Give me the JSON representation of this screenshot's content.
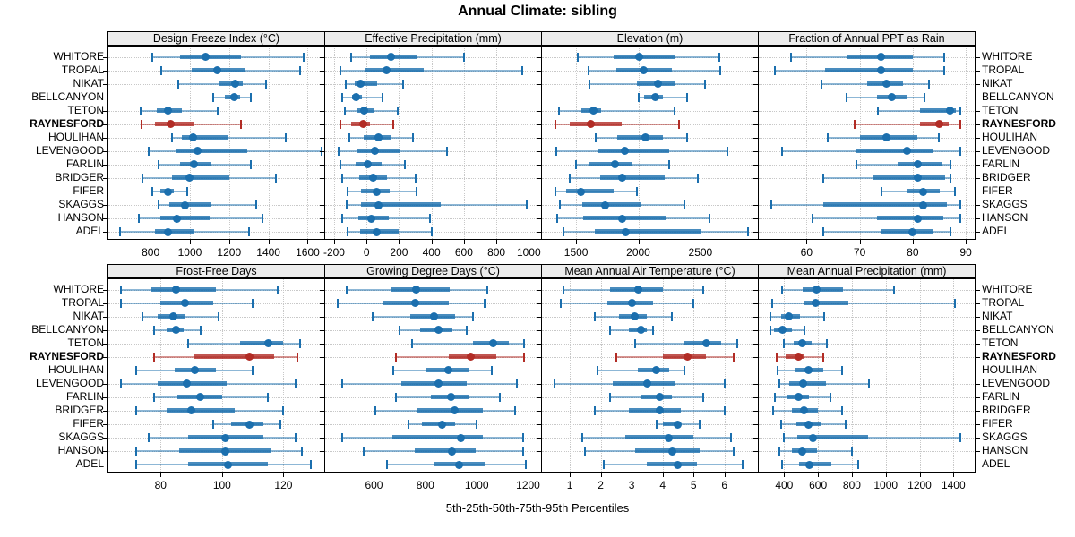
{
  "title": "Annual Climate: sibling",
  "caption": "5th-25th-50th-75th-95th Percentiles",
  "highlight_station": "RAYNESFORD",
  "percentiles": [
    5,
    25,
    50,
    75,
    95
  ],
  "stations": [
    "WHITORE",
    "TROPAL",
    "NIKAT",
    "BELLCANYON",
    "TETON",
    "RAYNESFORD",
    "HOULIHAN",
    "LEVENGOOD",
    "FARLIN",
    "BRIDGER",
    "FIFER",
    "SKAGGS",
    "HANSON",
    "ADEL"
  ],
  "colors": {
    "series": "#1b6fae",
    "highlight": "#b22c25",
    "strip_bg": "#ececec",
    "grid": "#c8c8c8",
    "border": "#000000",
    "text": "#000000"
  },
  "chart_data": [
    {
      "type": "dotplot-percentiles",
      "title": "Design Freeze Index (°C)",
      "grid_row": 0,
      "grid_col": 0,
      "xlim": [
        585,
        1680
      ],
      "ticks": [
        800,
        1000,
        1200,
        1400,
        1600
      ],
      "values": [
        [
          810,
          950,
          1080,
          1260,
          1580
        ],
        [
          855,
          1010,
          1140,
          1280,
          1560
        ],
        [
          940,
          1150,
          1230,
          1270,
          1390
        ],
        [
          1120,
          1180,
          1225,
          1255,
          1310
        ],
        [
          750,
          830,
          890,
          960,
          1140
        ],
        [
          755,
          820,
          900,
          1020,
          1260
        ],
        [
          910,
          960,
          1015,
          1190,
          1490
        ],
        [
          790,
          930,
          1040,
          1290,
          1670
        ],
        [
          840,
          950,
          1020,
          1110,
          1310
        ],
        [
          760,
          910,
          1000,
          1200,
          1440
        ],
        [
          810,
          850,
          890,
          920,
          985
        ],
        [
          840,
          895,
          975,
          1110,
          1340
        ],
        [
          740,
          850,
          935,
          1100,
          1370
        ],
        [
          645,
          820,
          890,
          1025,
          1300
        ]
      ]
    },
    {
      "type": "dotplot-percentiles",
      "title": "Effective Precipitation (mm)",
      "grid_row": 0,
      "grid_col": 1,
      "xlim": [
        -255,
        1070
      ],
      "ticks": [
        -200,
        0,
        200,
        400,
        600,
        800,
        1000
      ],
      "values": [
        [
          -95,
          20,
          150,
          310,
          600
        ],
        [
          -160,
          -10,
          125,
          355,
          960
        ],
        [
          -130,
          -75,
          -35,
          65,
          225
        ],
        [
          -150,
          -90,
          -65,
          -30,
          100
        ],
        [
          -135,
          -60,
          -15,
          45,
          190
        ],
        [
          -160,
          -95,
          -20,
          20,
          165
        ],
        [
          -105,
          -20,
          75,
          155,
          285
        ],
        [
          -170,
          -60,
          50,
          205,
          495
        ],
        [
          -160,
          -65,
          5,
          95,
          235
        ],
        [
          -150,
          -45,
          40,
          125,
          305
        ],
        [
          -115,
          -35,
          65,
          145,
          310
        ],
        [
          -120,
          -35,
          75,
          455,
          985
        ],
        [
          -150,
          -50,
          30,
          135,
          390
        ],
        [
          -115,
          -40,
          65,
          200,
          400
        ]
      ]
    },
    {
      "type": "dotplot-percentiles",
      "title": "Elevation (m)",
      "grid_row": 0,
      "grid_col": 2,
      "xlim": [
        1225,
        2955
      ],
      "ticks": [
        1500,
        2000,
        2500
      ],
      "values": [
        [
          1510,
          1800,
          2010,
          2290,
          2650
        ],
        [
          1600,
          1820,
          2040,
          2270,
          2660
        ],
        [
          1610,
          1990,
          2160,
          2290,
          2540
        ],
        [
          2000,
          2050,
          2140,
          2200,
          2390
        ],
        [
          1360,
          1540,
          1640,
          1700,
          2290
        ],
        [
          1330,
          1450,
          1620,
          1870,
          2330
        ],
        [
          1660,
          1830,
          2060,
          2200,
          2390
        ],
        [
          1340,
          1680,
          1890,
          2250,
          2720
        ],
        [
          1500,
          1600,
          1810,
          1950,
          2250
        ],
        [
          1450,
          1690,
          1870,
          2210,
          2480
        ],
        [
          1330,
          1420,
          1540,
          1800,
          1990
        ],
        [
          1370,
          1550,
          1730,
          2020,
          2370
        ],
        [
          1350,
          1560,
          1870,
          2230,
          2570
        ],
        [
          1400,
          1650,
          1900,
          2510,
          2880
        ]
      ]
    },
    {
      "type": "dotplot-percentiles",
      "title": "Fraction of Annual PPT as Rain",
      "grid_row": 0,
      "grid_col": 3,
      "xlim": [
        51,
        91.5
      ],
      "ticks": [
        60,
        70,
        80,
        90
      ],
      "values": [
        [
          57,
          67.5,
          74,
          80,
          86
        ],
        [
          54,
          63.5,
          74,
          80,
          86
        ],
        [
          62.8,
          71.4,
          75,
          78.2,
          83
        ],
        [
          67.5,
          73.3,
          76,
          79,
          82.2
        ],
        [
          73.5,
          81.3,
          87,
          88.1,
          88.9
        ],
        [
          69,
          81.3,
          85,
          86.7,
          88.9
        ],
        [
          64,
          70,
          75,
          80.8,
          85
        ],
        [
          55.4,
          69.4,
          79,
          83.9,
          88.9
        ],
        [
          69.4,
          77.2,
          81,
          85.4,
          87.1
        ],
        [
          63.2,
          72.4,
          81,
          86.1,
          87.1
        ],
        [
          74.2,
          79,
          82,
          85.1,
          87.9
        ],
        [
          53.4,
          63.2,
          82,
          86.4,
          88.9
        ],
        [
          61.2,
          73.2,
          80.9,
          85.8,
          88.9
        ],
        [
          63.2,
          74.2,
          80,
          83.9,
          87.1
        ]
      ]
    },
    {
      "type": "dotplot-percentiles",
      "title": "Frost-Free Days",
      "grid_row": 1,
      "grid_col": 0,
      "xlim": [
        63,
        133
      ],
      "ticks": [
        80,
        100,
        120
      ],
      "values": [
        [
          67,
          77,
          85,
          98,
          118
        ],
        [
          67,
          80,
          88,
          97,
          110
        ],
        [
          74,
          79,
          84,
          88,
          99
        ],
        [
          78,
          82,
          85,
          87.5,
          93
        ],
        [
          89,
          106,
          115,
          120,
          125.5
        ],
        [
          78,
          91,
          109,
          117,
          124.5
        ],
        [
          72,
          84.5,
          91,
          98,
          110
        ],
        [
          67,
          79,
          88.5,
          101.5,
          124
        ],
        [
          78,
          85.5,
          93,
          100,
          115
        ],
        [
          72,
          82,
          90,
          104,
          120
        ],
        [
          97,
          103,
          109,
          113.5,
          119
        ],
        [
          76,
          89,
          101,
          113.5,
          124
        ],
        [
          72,
          86,
          101,
          116,
          126
        ],
        [
          72,
          89,
          102,
          115,
          129
        ]
      ]
    },
    {
      "type": "dotplot-percentiles",
      "title": "Growing Degree Days (°C)",
      "grid_row": 1,
      "grid_col": 1,
      "xlim": [
        410,
        1247
      ],
      "ticks": [
        600,
        800,
        1000,
        1200
      ],
      "values": [
        [
          495,
          665,
          765,
          895,
          1040
        ],
        [
          460,
          635,
          760,
          890,
          1030
        ],
        [
          595,
          740,
          835,
          915,
          985
        ],
        [
          700,
          780,
          850,
          905,
          960
        ],
        [
          750,
          985,
          1065,
          1125,
          1185
        ],
        [
          685,
          890,
          975,
          1075,
          1185
        ],
        [
          675,
          800,
          890,
          970,
          1060
        ],
        [
          475,
          705,
          850,
          960,
          1155
        ],
        [
          685,
          820,
          900,
          970,
          1090
        ],
        [
          605,
          770,
          915,
          1025,
          1150
        ],
        [
          735,
          785,
          865,
          915,
          1000
        ],
        [
          475,
          670,
          940,
          1025,
          1180
        ],
        [
          560,
          760,
          905,
          995,
          1180
        ],
        [
          650,
          835,
          930,
          1030,
          1190
        ]
      ]
    },
    {
      "type": "dotplot-percentiles",
      "title": "Mean Annual Air Temperature (°C)",
      "grid_row": 1,
      "grid_col": 2,
      "xlim": [
        0.1,
        7.05
      ],
      "ticks": [
        1,
        2,
        3,
        4,
        5,
        6
      ],
      "values": [
        [
          0.8,
          2.3,
          3.2,
          4.0,
          5.3
        ],
        [
          0.7,
          2.2,
          3.0,
          3.7,
          5.0
        ],
        [
          1.8,
          2.6,
          3.1,
          3.5,
          4.3
        ],
        [
          2.3,
          2.9,
          3.3,
          3.5,
          3.7
        ],
        [
          3.1,
          4.7,
          5.4,
          5.9,
          6.4
        ],
        [
          2.5,
          4.0,
          4.8,
          5.4,
          6.3
        ],
        [
          1.9,
          3.2,
          3.8,
          4.2,
          4.7
        ],
        [
          0.5,
          2.4,
          3.5,
          4.4,
          6.0
        ],
        [
          2.3,
          3.3,
          3.9,
          4.3,
          5.3
        ],
        [
          1.8,
          2.9,
          3.9,
          4.6,
          6.0
        ],
        [
          3.8,
          4.0,
          4.5,
          4.6,
          5.2
        ],
        [
          1.4,
          2.8,
          4.2,
          5.0,
          6.2
        ],
        [
          1.5,
          3.1,
          4.3,
          5.2,
          6.3
        ],
        [
          2.1,
          3.5,
          4.5,
          5.1,
          6.6
        ]
      ]
    },
    {
      "type": "dotplot-percentiles",
      "title": "Mean Annual Precipitation (mm)",
      "grid_row": 1,
      "grid_col": 3,
      "xlim": [
        250,
        1520
      ],
      "ticks": [
        400,
        600,
        800,
        1000,
        1200,
        1400
      ],
      "values": [
        [
          385,
          510,
          590,
          750,
          1050
        ],
        [
          330,
          520,
          585,
          780,
          1410
        ],
        [
          320,
          380,
          425,
          495,
          635
        ],
        [
          320,
          340,
          390,
          445,
          520
        ],
        [
          400,
          455,
          505,
          560,
          650
        ],
        [
          355,
          410,
          485,
          515,
          630
        ],
        [
          360,
          460,
          545,
          630,
          740
        ],
        [
          370,
          430,
          510,
          645,
          900
        ],
        [
          345,
          420,
          485,
          545,
          675
        ],
        [
          335,
          445,
          515,
          600,
          740
        ],
        [
          380,
          470,
          545,
          615,
          765
        ],
        [
          400,
          480,
          570,
          895,
          1440
        ],
        [
          370,
          445,
          505,
          595,
          800
        ],
        [
          390,
          490,
          550,
          680,
          840
        ]
      ]
    }
  ]
}
